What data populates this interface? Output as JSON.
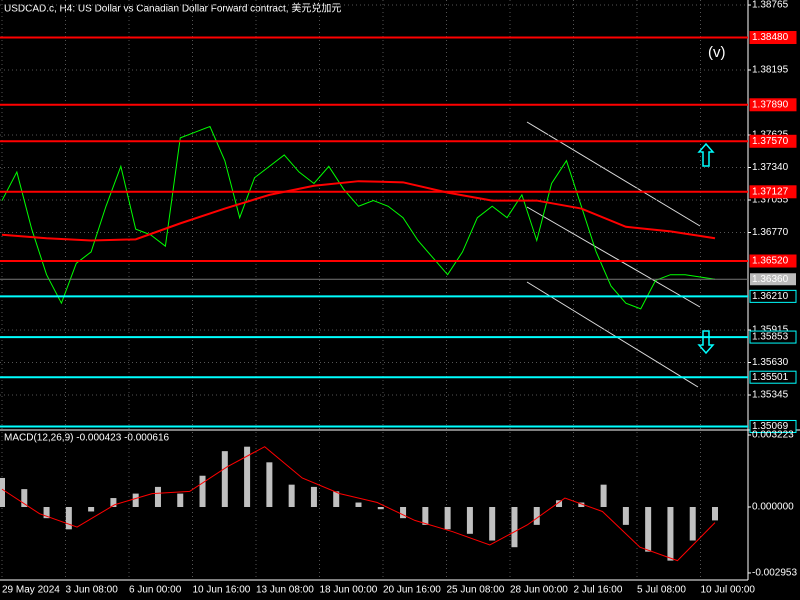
{
  "chart_data": [
    {
      "type": "line",
      "title": "USDCAD.c, H4:  US Dollar vs Canadian Dollar Forward contract, 美元兑加元",
      "annotation": "(v)",
      "ylim": [
        1.35038,
        1.38809
      ],
      "yticks": [
        1.38765,
        1.38195,
        1.37625,
        {
          "value": 1.3734,
          "label": "1.37340"
        },
        1.37055,
        {
          "value": 1.3677,
          "label": "1.36770"
        },
        1.35915,
        {
          "value": 1.3563,
          "label": "1.35630"
        },
        1.35345
      ],
      "time_labels": [
        "29 May 2024",
        "3 Jun 08:00",
        "6 Jun 00:00",
        "10 Jun 16:00",
        "13 Jun 08:00",
        "18 Jun 00:00",
        "20 Jun 16:00",
        "25 Jun 08:00",
        "28 Jun 00:00",
        "2 Jul 16:00",
        "5 Jul 08:00",
        "10 Jul 00:00"
      ],
      "grid": true,
      "series": [
        {
          "color": "#00ff00",
          "values": [
            1.3705,
            1.373,
            1.368,
            1.364,
            1.3615,
            1.365,
            1.366,
            1.37,
            1.3735,
            1.368,
            1.3675,
            1.3665,
            1.376,
            1.3765,
            1.377,
            1.374,
            1.369,
            1.3725,
            1.3735,
            1.3745,
            1.373,
            1.372,
            1.3735,
            1.3715,
            1.37,
            1.3705,
            1.37,
            1.369,
            1.367,
            1.3655,
            1.364,
            1.366,
            1.369,
            1.37,
            1.369,
            1.371,
            1.367,
            1.372,
            1.374,
            1.37,
            1.366,
            1.363,
            1.3615,
            1.361,
            1.3635,
            1.364,
            1.364,
            1.3638,
            1.3636
          ]
        },
        {
          "color": "#ff0000",
          "values": [
            1.3675,
            1.3672,
            1.367,
            1.3671,
            1.3685,
            1.3698,
            1.371,
            1.3718,
            1.3722,
            1.3721,
            1.3712,
            1.3705,
            1.3705,
            1.3698,
            1.3682,
            1.3678,
            1.3672
          ]
        }
      ],
      "levels": [
        {
          "value": 1.3848,
          "label": "1.38480",
          "color": "#ff0000"
        },
        {
          "value": 1.3789,
          "label": "1.37890",
          "color": "#ff0000"
        },
        {
          "value": 1.3757,
          "label": "1.37570",
          "color": "#ff0000"
        },
        {
          "value": 1.37127,
          "color": "#ff0000"
        },
        {
          "value": 1.3652,
          "label": "1.36520",
          "color": "#ff0000"
        },
        {
          "value": 1.3621,
          "label": "1.36210",
          "color": "#00ffff"
        },
        {
          "value": 1.35853,
          "color": "#00ffff"
        },
        {
          "value": 1.35501,
          "color": "#00ffff"
        },
        {
          "value": 1.35069,
          "color": "#00ffff"
        }
      ],
      "last": {
        "value": 1.3636,
        "label": "1.36360"
      }
    },
    {
      "type": "bar",
      "title": "MACD(12,26,9) -0.000423 -0.000616",
      "ylim": [
        -0.003268,
        0.003447
      ],
      "yticks": [
        0.003223,
        {
          "value": 0,
          "label": "0.000000"
        },
        -0.002953
      ],
      "series": [
        {
          "color": "#c0c0c0",
          "values": [
            0.0013,
            0.0008,
            -0.0005,
            -0.001,
            -0.0002,
            0.0004,
            0.0006,
            0.0009,
            0.0006,
            0.0014,
            0.0025,
            0.0027,
            0.002,
            0.001,
            0.0009,
            0.0007,
            0.0002,
            -0.0001,
            -0.0005,
            -0.0008,
            -0.001,
            -0.0012,
            -0.0015,
            -0.0018,
            -0.0008,
            0.0003,
            0.0002,
            0.001,
            -0.0008,
            -0.002,
            -0.0024,
            -0.0015,
            -0.0006
          ]
        },
        {
          "color": "#ff0000",
          "type": "line",
          "values": [
            0.0008,
            -0.0003,
            -0.0009,
            0.0001,
            0.0006,
            0.0007,
            0.0018,
            0.0027,
            0.0013,
            0.0006,
            0.0002,
            -0.0006,
            -0.0011,
            -0.0017,
            -0.0008,
            0.0004,
            -0.0002,
            -0.0018,
            -0.0024,
            -0.0007
          ]
        }
      ]
    }
  ]
}
